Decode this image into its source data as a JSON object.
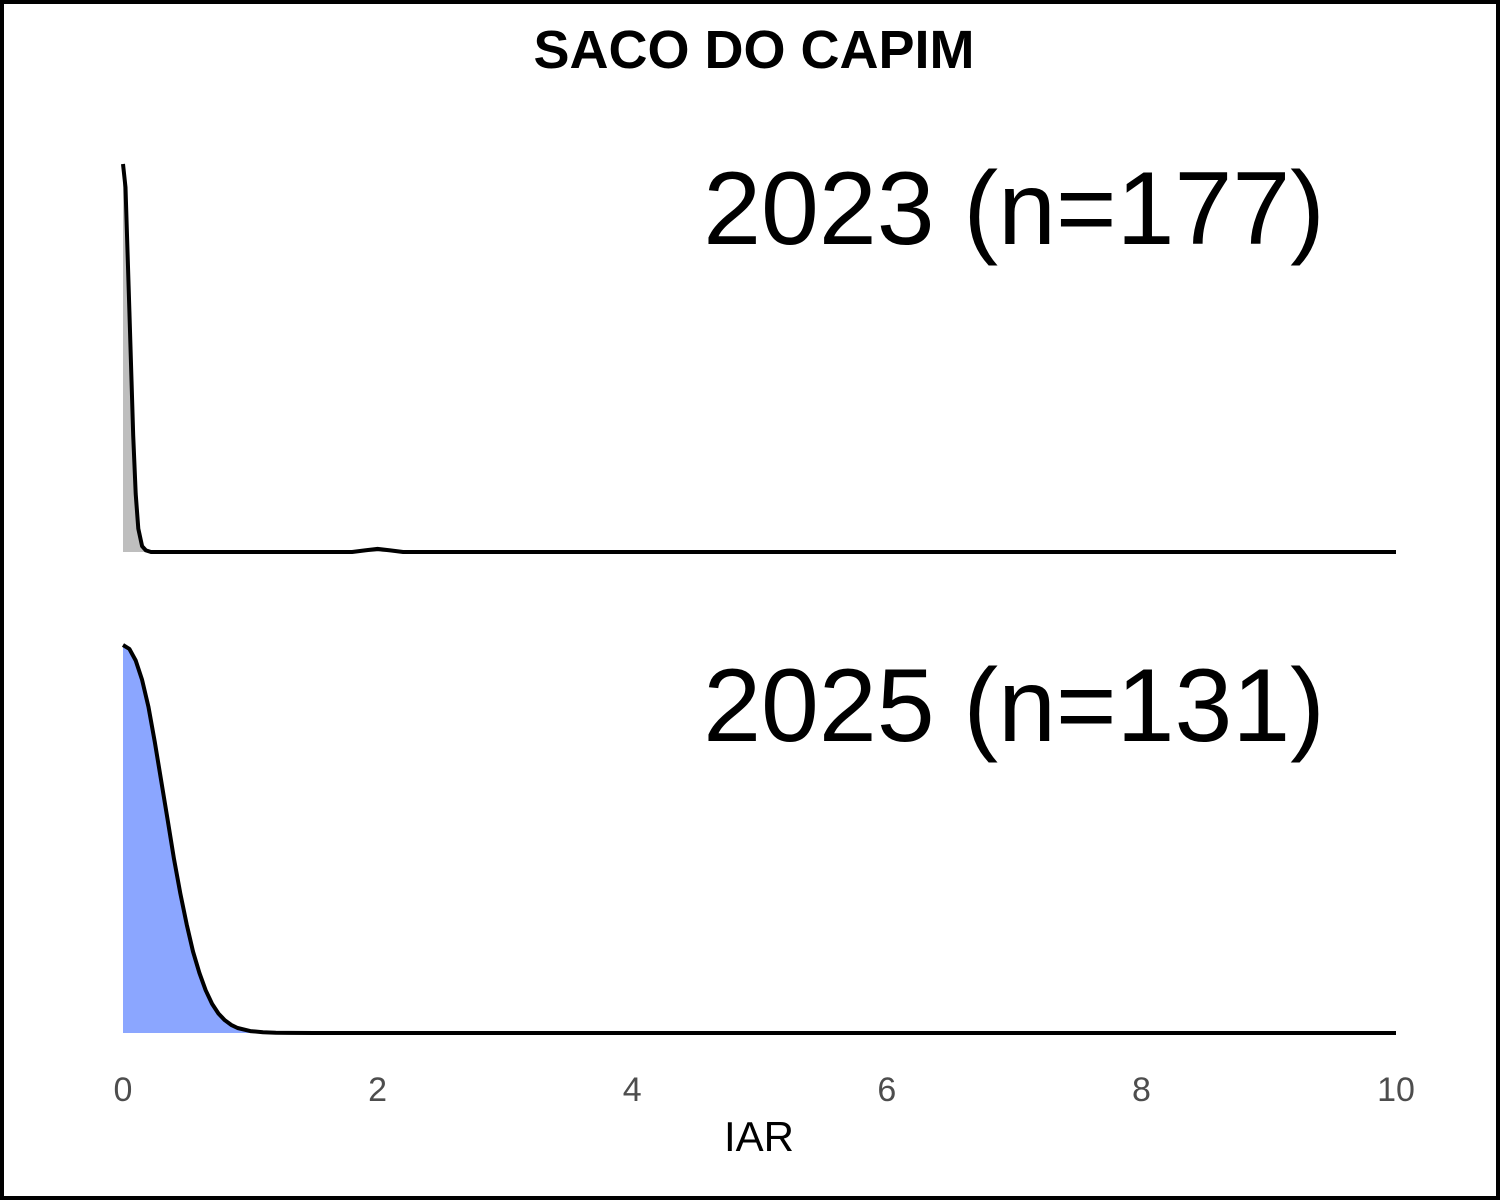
{
  "chart_data": {
    "type": "area",
    "title": "SACO DO CAPIM",
    "xlabel": "IAR",
    "ylabel": "",
    "xlim": [
      0,
      10
    ],
    "x_ticks": [
      "0",
      "2",
      "4",
      "6",
      "8",
      "10"
    ],
    "x_tick_values": [
      0,
      2,
      4,
      6,
      8,
      10
    ],
    "grid": false,
    "legend": "none",
    "series": [
      {
        "name": "2023 (n=177)",
        "color": "#bebebe",
        "x": [
          0,
          0.02,
          0.05,
          0.08,
          0.1,
          0.12,
          0.15,
          0.18,
          0.22,
          0.3,
          1.8,
          1.9,
          2.0,
          2.1,
          2.2,
          10
        ],
        "y": [
          1.0,
          0.94,
          0.62,
          0.3,
          0.15,
          0.06,
          0.015,
          0.004,
          0.0,
          0.0,
          0.0,
          0.004,
          0.008,
          0.004,
          0.0,
          0.0
        ]
      },
      {
        "name": "2025 (n=131)",
        "color": "#8ba6ff",
        "x": [
          0,
          0.05,
          0.1,
          0.15,
          0.2,
          0.25,
          0.3,
          0.35,
          0.4,
          0.45,
          0.5,
          0.55,
          0.6,
          0.65,
          0.7,
          0.75,
          0.8,
          0.85,
          0.9,
          1.0,
          1.1,
          1.2,
          1.3,
          1.5,
          10
        ],
        "y": [
          1.0,
          0.99,
          0.96,
          0.91,
          0.84,
          0.75,
          0.65,
          0.55,
          0.45,
          0.36,
          0.28,
          0.21,
          0.155,
          0.11,
          0.075,
          0.05,
          0.033,
          0.021,
          0.013,
          0.005,
          0.002,
          0.0008,
          0.0003,
          0.0,
          0.0
        ]
      }
    ]
  }
}
